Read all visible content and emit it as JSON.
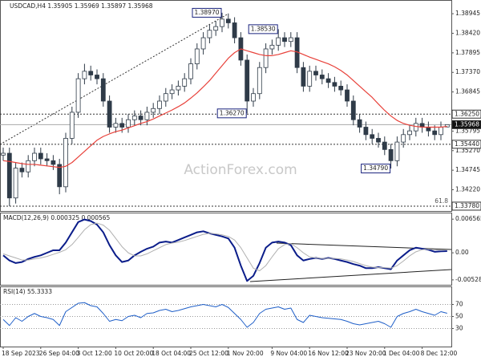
{
  "chart_data": [
    {
      "type": "candlestick",
      "title": "USDCAD,H4  1.35905 1.35969 1.35897 1.35968",
      "watermark": "ActionForex.com",
      "fib_label": "61.8",
      "ylim": [
        1.3365,
        1.3927
      ],
      "yticks": [
        1.38945,
        {
          "value": 1.3842,
          "label": "1.38420"
        },
        1.37895,
        {
          "value": 1.3737,
          "label": "1.37370"
        },
        1.36845,
        1.35795,
        {
          "value": 1.3527,
          "label": "1.35270"
        },
        1.34745,
        {
          "value": 1.3422,
          "label": "1.34220"
        }
      ],
      "levels": [
        {
          "value": 1.3625,
          "label": "1.36250",
          "dashed": true
        },
        {
          "value": 1.35968,
          "label": "1.35968",
          "current": true
        },
        {
          "value": 1.3544,
          "label": "1.35440",
          "dashed": true
        },
        {
          "value": 1.3378,
          "label": "1.33780",
          "dashed": true,
          "fib": true
        }
      ],
      "annotations": [
        {
          "value": 1.3897,
          "label": "1.38970"
        },
        {
          "value": 1.3853,
          "label": "1.38530"
        },
        {
          "value": 1.3627,
          "label": "1.36270"
        },
        {
          "value": 1.3479,
          "label": "1.34790"
        }
      ],
      "color": "#2f3b48",
      "open": [
        1.3515,
        1.352,
        1.34,
        1.348,
        1.347,
        1.35,
        1.352,
        1.3505,
        1.35,
        1.349,
        1.343,
        1.356,
        1.363,
        1.372,
        1.374,
        1.373,
        1.372,
        1.366,
        1.359,
        1.36,
        1.359,
        1.361,
        1.362,
        1.361,
        1.363,
        1.364,
        1.366,
        1.368,
        1.369,
        1.37,
        1.372,
        1.376,
        1.38,
        1.383,
        1.385,
        1.386,
        1.388,
        1.387,
        1.383,
        1.377,
        1.366,
        1.368,
        1.375,
        1.38,
        1.381,
        1.383,
        1.382,
        1.383,
        1.375,
        1.37,
        1.374,
        1.373,
        1.372,
        1.371,
        1.37,
        1.369,
        1.366,
        1.361,
        1.359,
        1.357,
        1.356,
        1.355,
        1.353,
        1.35,
        1.355,
        1.357,
        1.358,
        1.36,
        1.359,
        1.358,
        1.357,
        1.35905
      ],
      "high": [
        1.3535,
        1.3535,
        1.3495,
        1.3495,
        1.3515,
        1.3535,
        1.3535,
        1.352,
        1.3515,
        1.3505,
        1.3575,
        1.3645,
        1.3735,
        1.376,
        1.3755,
        1.3745,
        1.3735,
        1.3675,
        1.3615,
        1.3615,
        1.3625,
        1.3635,
        1.3635,
        1.3645,
        1.3655,
        1.3675,
        1.3695,
        1.3705,
        1.3715,
        1.3735,
        1.3775,
        1.3815,
        1.3845,
        1.3865,
        1.3875,
        1.3897,
        1.3895,
        1.3885,
        1.3845,
        1.3785,
        1.3695,
        1.3765,
        1.3815,
        1.3825,
        1.3853,
        1.3845,
        1.3845,
        1.3845,
        1.3765,
        1.3755,
        1.3755,
        1.3745,
        1.3735,
        1.3725,
        1.3715,
        1.3705,
        1.3675,
        1.3625,
        1.3605,
        1.3585,
        1.3575,
        1.3565,
        1.3545,
        1.3565,
        1.3585,
        1.3595,
        1.3615,
        1.3615,
        1.3605,
        1.3595,
        1.3605,
        1.35969
      ],
      "low": [
        1.35,
        1.3378,
        1.3385,
        1.3455,
        1.3455,
        1.3485,
        1.349,
        1.3485,
        1.3475,
        1.341,
        1.3415,
        1.3545,
        1.3615,
        1.3705,
        1.3715,
        1.3705,
        1.3645,
        1.3575,
        1.3575,
        1.3575,
        1.3575,
        1.3595,
        1.3595,
        1.3595,
        1.3615,
        1.3625,
        1.3645,
        1.3665,
        1.3675,
        1.3685,
        1.3705,
        1.3745,
        1.3785,
        1.3815,
        1.3835,
        1.3845,
        1.3855,
        1.3815,
        1.3755,
        1.3627,
        1.3645,
        1.3665,
        1.3735,
        1.3785,
        1.3795,
        1.3805,
        1.3805,
        1.3735,
        1.3685,
        1.3685,
        1.3715,
        1.3705,
        1.3695,
        1.3685,
        1.3675,
        1.3645,
        1.3595,
        1.3575,
        1.3555,
        1.3545,
        1.3535,
        1.3515,
        1.3479,
        1.3485,
        1.3535,
        1.3555,
        1.3565,
        1.3575,
        1.3565,
        1.3555,
        1.3555,
        1.35897
      ],
      "close": [
        1.352,
        1.34,
        1.348,
        1.347,
        1.35,
        1.352,
        1.3505,
        1.35,
        1.349,
        1.343,
        1.356,
        1.363,
        1.372,
        1.374,
        1.373,
        1.372,
        1.366,
        1.359,
        1.36,
        1.359,
        1.361,
        1.362,
        1.361,
        1.363,
        1.364,
        1.366,
        1.368,
        1.369,
        1.37,
        1.372,
        1.376,
        1.38,
        1.383,
        1.385,
        1.386,
        1.388,
        1.387,
        1.383,
        1.377,
        1.366,
        1.368,
        1.375,
        1.38,
        1.381,
        1.383,
        1.382,
        1.383,
        1.375,
        1.37,
        1.374,
        1.373,
        1.372,
        1.371,
        1.37,
        1.369,
        1.366,
        1.361,
        1.359,
        1.357,
        1.356,
        1.355,
        1.353,
        1.35,
        1.355,
        1.357,
        1.358,
        1.36,
        1.359,
        1.358,
        1.357,
        1.359,
        1.35968
      ],
      "series": [
        {
          "color": "#e8413a",
          "values": [
            1.35,
            1.3498,
            1.3495,
            1.3492,
            1.349,
            1.349,
            1.3488,
            1.3486,
            1.3484,
            1.3482,
            1.3485,
            1.3495,
            1.351,
            1.3525,
            1.354,
            1.3555,
            1.3565,
            1.3572,
            1.3578,
            1.3582,
            1.3588,
            1.3594,
            1.36,
            1.3605,
            1.3612,
            1.362,
            1.3628,
            1.3636,
            1.3645,
            1.3655,
            1.3668,
            1.3682,
            1.3698,
            1.3715,
            1.3735,
            1.3755,
            1.3775,
            1.379,
            1.38,
            1.3795,
            1.379,
            1.3785,
            1.3782,
            1.3782,
            1.3785,
            1.379,
            1.3795,
            1.3792,
            1.3785,
            1.3778,
            1.3772,
            1.3766,
            1.376,
            1.3752,
            1.3742,
            1.373,
            1.3715,
            1.37,
            1.3685,
            1.367,
            1.3652,
            1.3635,
            1.362,
            1.3608,
            1.36,
            1.3595,
            1.3592,
            1.359,
            1.359,
            1.359,
            1.359,
            1.3592
          ]
        }
      ]
    },
    {
      "type": "line",
      "title": "MACD(12,26,9) 0.000325 0.000565",
      "ylim": [
        -0.00624,
        0.00769
      ],
      "yticks": [
        0.006565,
        {
          "value": 0,
          "label": "0.00"
        },
        -0.005283
      ],
      "series": [
        {
          "color": "#0b1d8a",
          "width": 2,
          "values": [
            -0.0005,
            -0.0015,
            -0.002,
            -0.0018,
            -0.0012,
            -0.0008,
            -0.0005,
            0.0,
            0.0005,
            0.0005,
            0.002,
            0.004,
            0.006,
            0.0065,
            0.0062,
            0.0055,
            0.004,
            0.0015,
            -0.0005,
            -0.0018,
            -0.0015,
            -0.0005,
            0.0002,
            0.0008,
            0.0012,
            0.002,
            0.0022,
            0.002,
            0.0025,
            0.003,
            0.0035,
            0.004,
            0.0042,
            0.0038,
            0.0035,
            0.0032,
            0.0028,
            0.001,
            -0.0025,
            -0.0055,
            -0.0045,
            -0.002,
            0.001,
            0.002,
            0.0022,
            0.002,
            0.0015,
            -0.0005,
            -0.0015,
            -0.0012,
            -0.001,
            -0.0012,
            -0.001,
            -0.0012,
            -0.0015,
            -0.0018,
            -0.0022,
            -0.0025,
            -0.003,
            -0.003,
            -0.0028,
            -0.003,
            -0.0032,
            -0.0015,
            -0.0005,
            0.0005,
            0.001,
            0.0008,
            0.0006,
            0.0002,
            0.0003,
            0.000325
          ]
        },
        {
          "color": "#b0b0b0",
          "width": 1,
          "values": [
            -0.0002,
            -0.0006,
            -0.001,
            -0.0014,
            -0.0014,
            -0.0012,
            -0.001,
            -0.0007,
            -0.0003,
            0.0001,
            0.0006,
            0.0016,
            0.003,
            0.0045,
            0.0055,
            0.0058,
            0.0054,
            0.0044,
            0.0028,
            0.0012,
            0.0,
            -0.0006,
            -0.0006,
            -0.0002,
            0.0004,
            0.001,
            0.0016,
            0.0019,
            0.0021,
            0.0024,
            0.0028,
            0.0032,
            0.0036,
            0.0038,
            0.0037,
            0.0035,
            0.0032,
            0.0025,
            0.001,
            -0.001,
            -0.003,
            -0.0035,
            -0.0025,
            -0.0008,
            0.0008,
            0.0016,
            0.0018,
            0.001,
            0.0,
            -0.0008,
            -0.001,
            -0.0011,
            -0.0011,
            -0.0011,
            -0.0012,
            -0.0014,
            -0.0017,
            -0.0021,
            -0.0025,
            -0.0028,
            -0.0029,
            -0.0029,
            -0.003,
            -0.0025,
            -0.0016,
            -0.0006,
            0.0002,
            0.0006,
            0.0007,
            0.0006,
            0.0005,
            0.000565
          ]
        }
      ]
    },
    {
      "type": "line",
      "title": "RSI(14) 55.3333",
      "ylim": [
        0,
        100
      ],
      "yticks": [
        70,
        50,
        30
      ],
      "grid": true,
      "categories": [
        "18 Sep 2023",
        null,
        null,
        null,
        null,
        null,
        "26 Sep 04:00",
        null,
        null,
        null,
        null,
        null,
        "3 Oct 12:00",
        null,
        null,
        null,
        null,
        null,
        "10 Oct 20:00",
        null,
        null,
        null,
        null,
        null,
        "18 Oct 04:00",
        null,
        null,
        null,
        null,
        null,
        "25 Oct 12:00",
        null,
        null,
        null,
        null,
        null,
        "1 Nov 20:00",
        null,
        null,
        null,
        null,
        null,
        null,
        "9 Nov 04:00",
        null,
        null,
        null,
        null,
        null,
        "16 Nov 12:00",
        null,
        null,
        null,
        null,
        null,
        "23 Nov 20:00",
        null,
        null,
        null,
        null,
        null,
        "1 Dec 04:00",
        null,
        null,
        null,
        null,
        null,
        "8 Dec 12:00",
        null,
        null,
        null,
        null
      ],
      "series": [
        {
          "color": "#1f5fc8",
          "width": 1,
          "values": [
            45,
            35,
            48,
            42,
            50,
            55,
            50,
            48,
            45,
            35,
            58,
            65,
            72,
            73,
            68,
            66,
            55,
            42,
            45,
            43,
            50,
            52,
            48,
            55,
            56,
            60,
            62,
            58,
            60,
            63,
            66,
            68,
            70,
            68,
            66,
            70,
            65,
            55,
            45,
            32,
            40,
            55,
            62,
            64,
            66,
            62,
            64,
            45,
            40,
            52,
            50,
            48,
            47,
            46,
            45,
            42,
            38,
            36,
            38,
            40,
            42,
            38,
            32,
            50,
            55,
            58,
            62,
            58,
            55,
            52,
            58,
            55.3333
          ]
        }
      ]
    }
  ]
}
